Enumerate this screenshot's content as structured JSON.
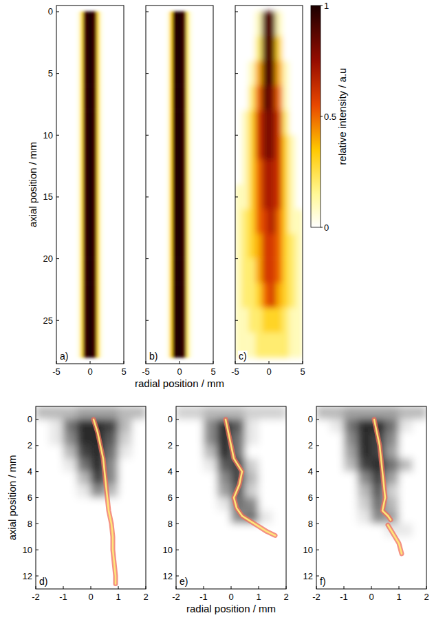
{
  "chart_data": [
    {
      "type": "heatmap",
      "title": "a)",
      "color": "hot",
      "y_label": "axial position / mm",
      "xlim": [
        -5,
        5
      ],
      "ylim": [
        -0.5,
        28.5
      ],
      "xticks": [
        -5,
        0,
        5
      ],
      "yticks": [
        0,
        5,
        10,
        15,
        20,
        25
      ],
      "x": [
        -1.75,
        -1.25,
        -0.75,
        -0.25,
        0.25,
        0.75,
        1.25,
        1.75
      ],
      "y": [
        1,
        3,
        5,
        7,
        9,
        11,
        13,
        15,
        17,
        19,
        21,
        23,
        25,
        27
      ],
      "z": [
        [
          0.03,
          0.25,
          0.9,
          1,
          1,
          0.9,
          0.25,
          0.03
        ],
        [
          0.03,
          0.25,
          0.9,
          1,
          1,
          0.9,
          0.25,
          0.03
        ],
        [
          0.03,
          0.25,
          0.9,
          1,
          1,
          0.9,
          0.25,
          0.03
        ],
        [
          0.03,
          0.25,
          0.9,
          1,
          1,
          0.9,
          0.25,
          0.03
        ],
        [
          0.03,
          0.25,
          0.9,
          1,
          1,
          0.9,
          0.25,
          0.03
        ],
        [
          0.03,
          0.25,
          0.9,
          1,
          1,
          0.9,
          0.25,
          0.03
        ],
        [
          0.03,
          0.25,
          0.9,
          1,
          1,
          0.9,
          0.25,
          0.03
        ],
        [
          0.03,
          0.25,
          0.9,
          1,
          1,
          0.9,
          0.25,
          0.03
        ],
        [
          0.03,
          0.25,
          0.9,
          1,
          1,
          0.9,
          0.25,
          0.03
        ],
        [
          0.03,
          0.25,
          0.9,
          1,
          1,
          0.9,
          0.25,
          0.03
        ],
        [
          0.03,
          0.25,
          0.9,
          1,
          1,
          0.9,
          0.25,
          0.03
        ],
        [
          0.03,
          0.25,
          0.9,
          1,
          1,
          0.9,
          0.25,
          0.03
        ],
        [
          0.03,
          0.25,
          0.9,
          1,
          1,
          0.9,
          0.25,
          0.03
        ],
        [
          0.03,
          0.25,
          0.9,
          1,
          1,
          0.9,
          0.25,
          0.03
        ]
      ]
    },
    {
      "type": "heatmap",
      "title": "b)",
      "color": "hot",
      "x_label": "radial position / mm",
      "tick_labels": "x",
      "xlim": [
        -5,
        5
      ],
      "ylim": [
        -0.5,
        28.5
      ],
      "xticks": [
        -5,
        0,
        5
      ],
      "yticks": [
        0,
        5,
        10,
        15,
        20,
        25
      ],
      "x": [
        -1.75,
        -1.25,
        -0.75,
        -0.25,
        0.25,
        0.75,
        1.25,
        1.75
      ],
      "y": [
        1,
        3,
        5,
        7,
        9,
        11,
        13,
        15,
        17,
        19,
        21,
        23,
        25,
        27
      ],
      "z": [
        [
          0.03,
          0.3,
          0.95,
          1,
          1,
          0.9,
          0.2,
          0.03
        ],
        [
          0.03,
          0.3,
          0.95,
          1,
          1,
          0.9,
          0.2,
          0.03
        ],
        [
          0.03,
          0.3,
          0.95,
          1,
          1,
          0.9,
          0.2,
          0.03
        ],
        [
          0.03,
          0.3,
          0.95,
          1,
          1,
          0.9,
          0.2,
          0.03
        ],
        [
          0.03,
          0.3,
          0.95,
          1,
          1,
          0.9,
          0.2,
          0.03
        ],
        [
          0.03,
          0.3,
          0.95,
          1,
          1,
          0.9,
          0.2,
          0.03
        ],
        [
          0.03,
          0.3,
          0.95,
          1,
          1,
          0.9,
          0.2,
          0.03
        ],
        [
          0.03,
          0.3,
          0.95,
          1,
          1,
          0.9,
          0.2,
          0.03
        ],
        [
          0.03,
          0.3,
          0.95,
          1,
          1,
          0.9,
          0.2,
          0.03
        ],
        [
          0.03,
          0.3,
          0.95,
          1,
          1,
          0.9,
          0.2,
          0.03
        ],
        [
          0.03,
          0.3,
          0.95,
          1,
          1,
          0.9,
          0.2,
          0.03
        ],
        [
          0.03,
          0.3,
          0.95,
          1,
          1,
          0.9,
          0.2,
          0.03
        ],
        [
          0.03,
          0.3,
          0.95,
          1,
          1,
          0.9,
          0.2,
          0.03
        ],
        [
          0.03,
          0.3,
          0.95,
          1,
          1,
          0.9,
          0.2,
          0.03
        ]
      ]
    },
    {
      "type": "heatmap",
      "title": "c)",
      "color": "hot",
      "tick_labels": "x",
      "xlim": [
        -5,
        5
      ],
      "ylim": [
        -0.5,
        28.5
      ],
      "xticks": [
        -5,
        0,
        5
      ],
      "yticks": [
        0,
        5,
        10,
        15,
        20,
        25
      ],
      "x": [
        -4.5,
        -3.5,
        -2.5,
        -1.5,
        -0.5,
        0.5,
        1.5,
        2.5,
        3.5,
        4.5
      ],
      "y": [
        1,
        3,
        5,
        7,
        9,
        11,
        13,
        15,
        17,
        19,
        21,
        23,
        25,
        27
      ],
      "z": [
        [
          0,
          0,
          0,
          0.1,
          0.9,
          0.9,
          0.1,
          0,
          0,
          0
        ],
        [
          0,
          0,
          0,
          0.2,
          0.9,
          0.9,
          0.3,
          0,
          0,
          0
        ],
        [
          0,
          0,
          0.1,
          0.4,
          0.9,
          0.9,
          0.4,
          0.1,
          0,
          0
        ],
        [
          0,
          0,
          0.2,
          0.5,
          0.9,
          0.8,
          0.5,
          0.1,
          0,
          0
        ],
        [
          0,
          0.1,
          0.3,
          0.6,
          0.8,
          0.8,
          0.6,
          0.2,
          0,
          0
        ],
        [
          0,
          0.1,
          0.3,
          0.6,
          0.8,
          0.8,
          0.6,
          0.3,
          0.1,
          0
        ],
        [
          0,
          0.1,
          0.3,
          0.5,
          0.7,
          0.7,
          0.6,
          0.3,
          0.1,
          0
        ],
        [
          0.1,
          0.1,
          0.3,
          0.5,
          0.7,
          0.7,
          0.6,
          0.3,
          0.1,
          0
        ],
        [
          0.1,
          0.2,
          0.3,
          0.5,
          0.6,
          0.7,
          0.5,
          0.3,
          0.1,
          0.1
        ],
        [
          0.1,
          0.2,
          0.3,
          0.4,
          0.6,
          0.6,
          0.5,
          0.3,
          0.2,
          0.1
        ],
        [
          0.1,
          0.2,
          0.2,
          0.4,
          0.6,
          0.6,
          0.5,
          0.3,
          0.2,
          0.1
        ],
        [
          0.1,
          0.2,
          0.2,
          0.3,
          0.5,
          0.6,
          0.4,
          0.3,
          0.2,
          0.1
        ],
        [
          0.1,
          0.1,
          0.2,
          0.2,
          0.3,
          0.3,
          0.3,
          0.2,
          0.1,
          0.1
        ],
        [
          0.1,
          0.1,
          0.1,
          0.2,
          0.2,
          0.2,
          0.2,
          0.2,
          0.1,
          0.1
        ]
      ],
      "colorbar": {
        "range": [
          0,
          1
        ],
        "ticks": [
          0,
          0.5,
          1
        ],
        "label": "relative intensity / a.u"
      }
    },
    {
      "type": "heatmap",
      "title": "d)",
      "color": "gray",
      "y_label": "axial position / mm",
      "xlim": [
        -2,
        2
      ],
      "ylim": [
        -1,
        13
      ],
      "xticks": [
        -2,
        -1,
        0,
        1,
        2
      ],
      "yticks": [
        0,
        2,
        4,
        6,
        8,
        10,
        12
      ],
      "x": [
        -1.75,
        -1.25,
        -0.75,
        -0.25,
        0.25,
        0.75,
        1.25,
        1.75
      ],
      "y": [
        -0.5,
        0.5,
        1.5,
        2.5,
        3.5,
        4.5,
        5.5,
        6.5,
        7.5,
        8.5,
        9.5,
        10.5,
        11.5,
        12.5
      ],
      "z": [
        [
          0.3,
          0.3,
          0.3,
          0.4,
          0.4,
          0.4,
          0.3,
          0.3
        ],
        [
          0,
          0.1,
          0.6,
          0.9,
          0.9,
          0.8,
          0.3,
          0
        ],
        [
          0,
          0.1,
          0.5,
          0.9,
          0.9,
          0.7,
          0.2,
          0
        ],
        [
          0,
          0,
          0.3,
          0.8,
          0.9,
          0.6,
          0.1,
          0
        ],
        [
          0,
          0,
          0.1,
          0.6,
          0.9,
          0.5,
          0,
          0
        ],
        [
          0,
          0,
          0,
          0.3,
          0.8,
          0.5,
          0,
          0
        ],
        [
          0,
          0,
          0,
          0.1,
          0.5,
          0.3,
          0,
          0
        ],
        [
          0,
          0,
          0,
          0,
          0,
          0,
          0,
          0
        ],
        [
          0,
          0,
          0,
          0,
          0,
          0,
          0,
          0
        ],
        [
          0,
          0,
          0,
          0,
          0,
          0,
          0,
          0
        ],
        [
          0,
          0,
          0,
          0,
          0,
          0,
          0,
          0
        ],
        [
          0,
          0,
          0,
          0,
          0,
          0,
          0,
          0
        ],
        [
          0,
          0,
          0,
          0,
          0,
          0,
          0,
          0
        ],
        [
          0,
          0,
          0,
          0,
          0,
          0,
          0,
          0
        ]
      ],
      "filament": {
        "x": [
          0.1,
          0.25,
          0.35,
          0.45,
          0.5,
          0.55,
          0.6,
          0.65,
          0.75,
          0.8,
          0.8,
          0.85,
          0.9,
          0.9
        ],
        "y": [
          0,
          1,
          2,
          3,
          4,
          5,
          6,
          7,
          8,
          9,
          10,
          11,
          12,
          12.6
        ]
      }
    },
    {
      "type": "heatmap",
      "title": "e)",
      "color": "gray",
      "x_label": "radial position / mm",
      "xlim": [
        -2,
        2
      ],
      "ylim": [
        -1,
        13
      ],
      "xticks": [
        -2,
        -1,
        0,
        1,
        2
      ],
      "yticks": [
        0,
        2,
        4,
        6,
        8,
        10,
        12
      ],
      "x": [
        -1.75,
        -1.25,
        -0.75,
        -0.25,
        0.25,
        0.75,
        1.25,
        1.75
      ],
      "y": [
        -0.5,
        0.5,
        1.5,
        2.5,
        3.5,
        4.5,
        5.5,
        6.5,
        7.5,
        8.5,
        9.5,
        10.5,
        11.5,
        12.5
      ],
      "z": [
        [
          0.2,
          0.2,
          0.3,
          0.3,
          0.3,
          0.2,
          0.2,
          0.2
        ],
        [
          0,
          0,
          0.5,
          0.9,
          0.7,
          0.1,
          0,
          0
        ],
        [
          0,
          0,
          0.5,
          0.9,
          0.6,
          0.1,
          0,
          0
        ],
        [
          0,
          0,
          0.3,
          0.9,
          0.6,
          0,
          0,
          0
        ],
        [
          0,
          0,
          0.1,
          0.7,
          0.8,
          0.2,
          0,
          0
        ],
        [
          0,
          0,
          0,
          0.5,
          0.8,
          0.3,
          0,
          0
        ],
        [
          0,
          0,
          0,
          0.4,
          0.7,
          0.2,
          0,
          0
        ],
        [
          0,
          0,
          0,
          0.1,
          0.6,
          0.5,
          0,
          0
        ],
        [
          0,
          0,
          0,
          0,
          0.5,
          0.6,
          0.1,
          0
        ],
        [
          0,
          0,
          0,
          0,
          0,
          0,
          0,
          0
        ],
        [
          0,
          0,
          0,
          0,
          0,
          0,
          0,
          0
        ],
        [
          0,
          0,
          0,
          0,
          0,
          0,
          0,
          0
        ],
        [
          0,
          0,
          0,
          0,
          0,
          0,
          0,
          0
        ],
        [
          0,
          0,
          0,
          0,
          0,
          0,
          0,
          0
        ]
      ],
      "filament": {
        "x": [
          -0.2,
          -0.1,
          0,
          0.1,
          0.4,
          0.3,
          0.1,
          0.2,
          0.4,
          0.7,
          1.0,
          1.3,
          1.6
        ],
        "y": [
          0,
          1,
          2,
          3,
          4,
          5,
          6,
          6.8,
          7.4,
          7.8,
          8.2,
          8.6,
          8.9
        ]
      }
    },
    {
      "type": "heatmap",
      "title": "f)",
      "color": "gray",
      "xlim": [
        -2,
        2
      ],
      "ylim": [
        -1,
        13
      ],
      "xticks": [
        -2,
        -1,
        0,
        1,
        2
      ],
      "yticks": [
        0,
        2,
        4,
        6,
        8,
        10,
        12
      ],
      "x": [
        -1.75,
        -1.25,
        -0.75,
        -0.25,
        0.25,
        0.75,
        1.25,
        1.75
      ],
      "y": [
        -0.5,
        0.5,
        1.5,
        2.5,
        3.5,
        4.5,
        5.5,
        6.5,
        7.5,
        8.5,
        9.5,
        10.5,
        11.5,
        12.5
      ],
      "z": [
        [
          0.3,
          0.3,
          0.4,
          0.4,
          0.4,
          0.4,
          0.3,
          0.3
        ],
        [
          0,
          0.1,
          0.6,
          0.9,
          0.9,
          0.6,
          0.1,
          0
        ],
        [
          0,
          0,
          0.5,
          0.9,
          0.8,
          0.5,
          0,
          0
        ],
        [
          0,
          0,
          0.4,
          0.9,
          0.8,
          0.4,
          0,
          0
        ],
        [
          0,
          0,
          0.3,
          0.8,
          0.9,
          0.6,
          0.3,
          0
        ],
        [
          0,
          0,
          0,
          0.5,
          0.8,
          0.4,
          0,
          0
        ],
        [
          0,
          0,
          0,
          0.3,
          0.7,
          0.2,
          0,
          0
        ],
        [
          0,
          0,
          0,
          0.2,
          0.6,
          0.3,
          0,
          0
        ],
        [
          0,
          0,
          0,
          0.1,
          0.5,
          0.4,
          0,
          0
        ],
        [
          0,
          0,
          0,
          0,
          0,
          0.1,
          0.1,
          0
        ],
        [
          0,
          0,
          0,
          0,
          0,
          0,
          0,
          0
        ],
        [
          0,
          0,
          0,
          0,
          0,
          0,
          0,
          0
        ],
        [
          0,
          0,
          0,
          0,
          0,
          0,
          0,
          0
        ],
        [
          0,
          0,
          0,
          0,
          0,
          0,
          0,
          0
        ]
      ],
      "filament": {
        "x": [
          0.1,
          0.2,
          0.3,
          0.35,
          0.4,
          0.45,
          0.5,
          0.4,
          0.6,
          0.7,
          null,
          0.6,
          0.8,
          1.0,
          1.1
        ],
        "y": [
          0,
          1,
          2,
          3,
          4,
          5,
          6,
          7,
          7.4,
          7.7,
          null,
          8.1,
          8.8,
          9.5,
          10.3
        ]
      }
    }
  ]
}
